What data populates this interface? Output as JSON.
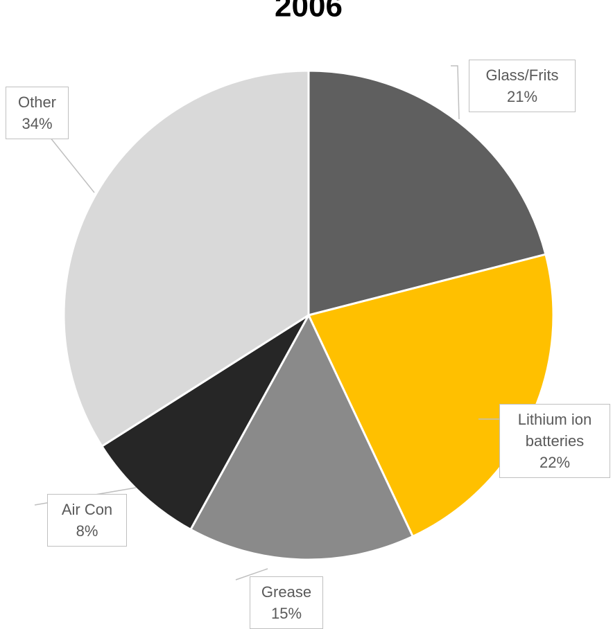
{
  "chart_data": {
    "type": "pie",
    "title": "2006",
    "categories": [
      "Glass/Frits",
      "Lithium ion batteries",
      "Grease",
      "Air Con",
      "Other"
    ],
    "values": [
      21,
      22,
      15,
      8,
      34
    ],
    "value_labels": [
      "21%",
      "22%",
      "15%",
      "8%",
      "34%"
    ],
    "colors": [
      "#5f5f5f",
      "#ffc000",
      "#8a8a8a",
      "#262626",
      "#d9d9d9"
    ]
  }
}
